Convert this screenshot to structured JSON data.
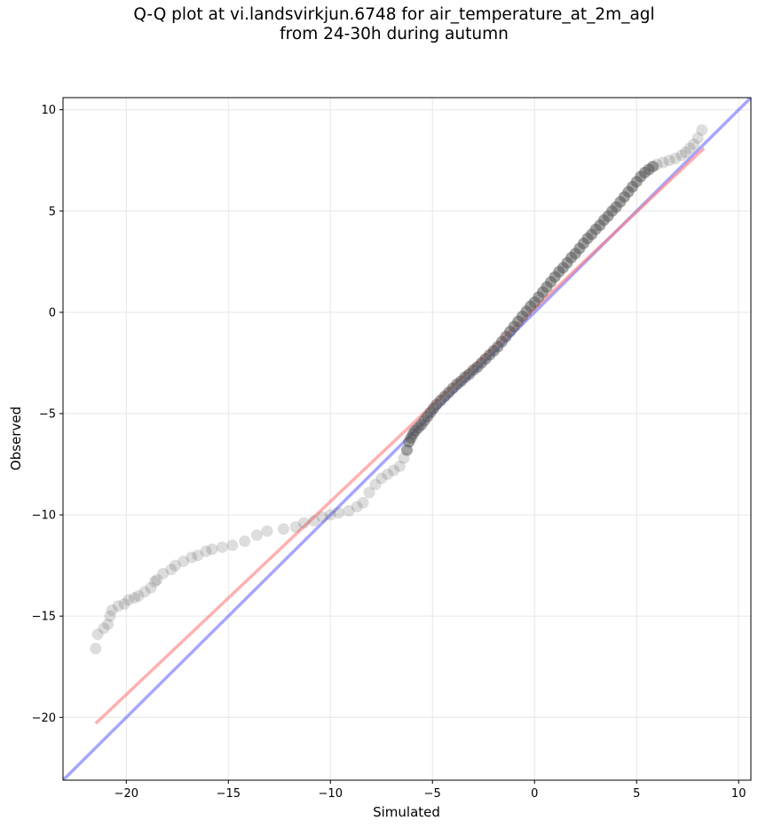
{
  "chart_data": {
    "type": "scatter",
    "title_line1": "Q-Q plot at vi.landsvirkjun.6748 for air_temperature_at_2m_agl",
    "title_line2": "from 24-30h during autumn",
    "xlabel": "Simulated",
    "ylabel": "Observed",
    "xlim": [
      -23.1,
      10.6
    ],
    "ylim": [
      -23.1,
      10.6
    ],
    "xticks": [
      -20,
      -15,
      -10,
      -5,
      0,
      5,
      10
    ],
    "yticks": [
      10,
      5,
      0,
      -5,
      -10,
      -15,
      -20
    ],
    "xtick_labels": [
      "−20",
      "−15",
      "−10",
      "−5",
      "0",
      "5",
      "10"
    ],
    "ytick_labels": [
      "10",
      "5",
      "0",
      "−5",
      "−10",
      "−15",
      "−20"
    ],
    "grid": true,
    "colors": {
      "points": "#555555",
      "identity_line": "#6b6bff",
      "fit_line": "#ff7b7b"
    },
    "identity_line": {
      "name": "1:1",
      "x": [
        -23.1,
        10.6
      ],
      "y": [
        -23.1,
        10.6
      ]
    },
    "fit_line": {
      "name": "fit",
      "x": [
        -21.5,
        8.3
      ],
      "y": [
        -20.3,
        8.1
      ]
    },
    "points": {
      "x": [
        -21.5,
        -21.4,
        -21.1,
        -20.9,
        -20.8,
        -20.7,
        -20.4,
        -20.1,
        -19.9,
        -19.6,
        -19.4,
        -19.1,
        -18.8,
        -18.6,
        -18.5,
        -18.2,
        -17.8,
        -17.6,
        -17.2,
        -16.8,
        -16.5,
        -16.1,
        -15.8,
        -15.3,
        -14.8,
        -14.2,
        -13.6,
        -13.1,
        -12.3,
        -11.7,
        -11.3,
        -10.8,
        -10.4,
        -10.0,
        -9.6,
        -9.1,
        -8.7,
        -8.4,
        -8.1,
        -7.8,
        -7.5,
        -7.2,
        -6.9,
        -6.6,
        -6.4,
        -6.25,
        -6.15,
        -6.05,
        -5.95,
        -5.85,
        -5.7,
        -5.55,
        -5.4,
        -5.25,
        -5.1,
        -4.95,
        -4.8,
        -4.6,
        -4.4,
        -4.2,
        -4.0,
        -3.8,
        -3.6,
        -3.4,
        -3.2,
        -3.0,
        -2.8,
        -2.6,
        -2.4,
        -2.2,
        -2.0,
        -1.8,
        -1.6,
        -1.4,
        -1.2,
        -1.0,
        -0.8,
        -0.6,
        -0.4,
        -0.2,
        0.0,
        0.2,
        0.4,
        0.6,
        0.8,
        1.0,
        1.2,
        1.4,
        1.6,
        1.8,
        2.0,
        2.2,
        2.4,
        2.6,
        2.8,
        3.0,
        3.2,
        3.4,
        3.6,
        3.8,
        4.0,
        4.2,
        4.4,
        4.6,
        4.8,
        5.0,
        5.2,
        5.4,
        5.6,
        5.8,
        6.0,
        6.3,
        6.6,
        6.9,
        7.2,
        7.4,
        7.6,
        7.8,
        8.0,
        8.2
      ],
      "y": [
        -16.6,
        -15.9,
        -15.6,
        -15.4,
        -15.0,
        -14.7,
        -14.5,
        -14.4,
        -14.2,
        -14.1,
        -14.0,
        -13.8,
        -13.6,
        -13.3,
        -13.2,
        -12.9,
        -12.7,
        -12.5,
        -12.3,
        -12.1,
        -12.0,
        -11.8,
        -11.7,
        -11.6,
        -11.5,
        -11.3,
        -11.0,
        -10.8,
        -10.7,
        -10.6,
        -10.4,
        -10.3,
        -10.1,
        -10.0,
        -9.9,
        -9.8,
        -9.6,
        -9.4,
        -8.9,
        -8.5,
        -8.2,
        -8.0,
        -7.8,
        -7.6,
        -7.2,
        -6.8,
        -6.4,
        -6.2,
        -6.0,
        -5.85,
        -5.7,
        -5.55,
        -5.35,
        -5.15,
        -4.95,
        -4.75,
        -4.55,
        -4.35,
        -4.15,
        -3.95,
        -3.75,
        -3.55,
        -3.4,
        -3.2,
        -3.05,
        -2.85,
        -2.7,
        -2.5,
        -2.3,
        -2.1,
        -1.9,
        -1.7,
        -1.45,
        -1.2,
        -0.95,
        -0.7,
        -0.45,
        -0.2,
        0.05,
        0.3,
        0.5,
        0.75,
        1.0,
        1.25,
        1.5,
        1.75,
        2.0,
        2.2,
        2.45,
        2.7,
        2.9,
        3.15,
        3.4,
        3.65,
        3.85,
        4.1,
        4.3,
        4.55,
        4.75,
        5.0,
        5.2,
        5.45,
        5.7,
        5.95,
        6.2,
        6.45,
        6.7,
        6.9,
        7.05,
        7.2,
        7.3,
        7.4,
        7.5,
        7.6,
        7.75,
        7.9,
        8.1,
        8.3,
        8.6,
        9.0
      ]
    }
  }
}
